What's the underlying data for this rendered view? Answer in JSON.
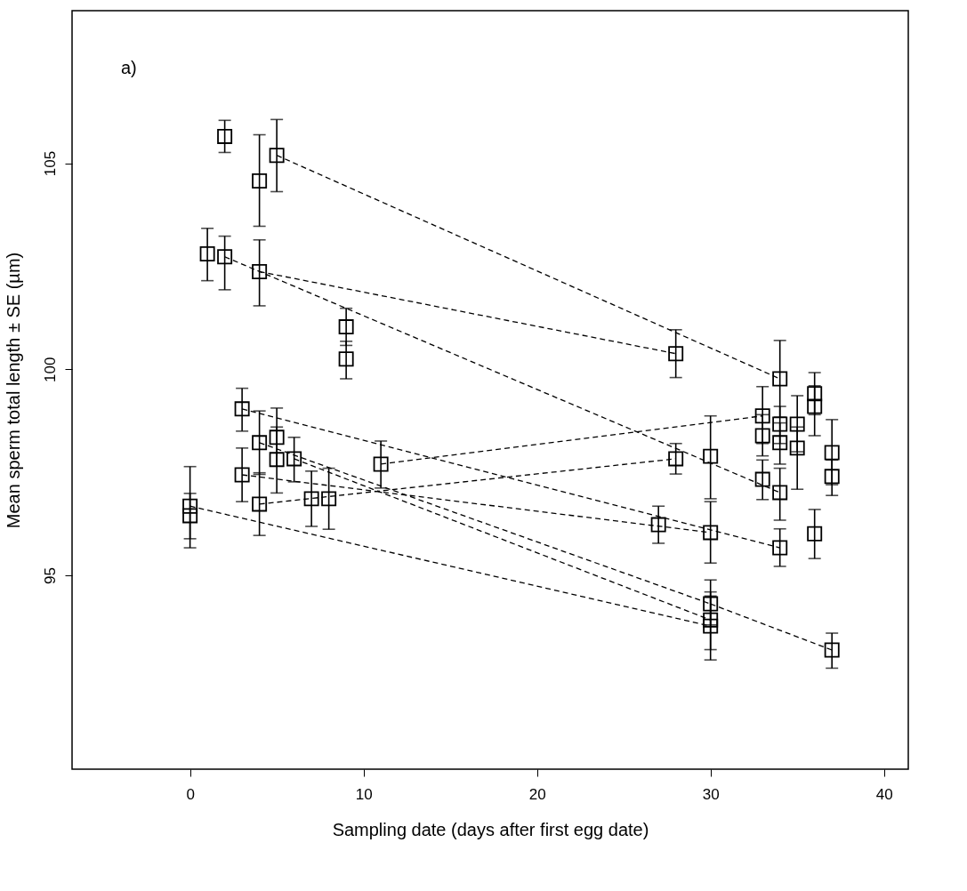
{
  "chart_data": {
    "type": "scatter",
    "xlabel": "Sampling date (days after first egg date)",
    "ylabel": "Mean sperm total length ± SE (µm)",
    "annotations": [
      "a)"
    ],
    "xlim": [
      -6.8,
      41.4
    ],
    "ylim": [
      90.3,
      108.7
    ],
    "xticks": [
      0,
      10,
      20,
      30,
      40
    ],
    "yticks": [
      95,
      100,
      105
    ],
    "series": [
      {
        "marker": "square",
        "color": "#000000",
        "x": [
          2,
          4,
          5,
          1,
          2,
          4,
          9,
          9,
          3,
          4,
          4,
          3,
          5,
          5,
          6,
          7,
          8,
          11,
          0,
          0,
          28,
          34,
          33,
          33,
          33,
          34,
          34,
          34,
          35,
          35,
          36,
          36,
          37,
          37,
          30,
          28,
          27,
          30,
          34,
          36,
          30,
          30,
          30,
          37
        ],
        "values": [
          105.65,
          104.57,
          105.19,
          102.8,
          102.73,
          102.37,
          101.03,
          100.25,
          99.04,
          98.22,
          96.73,
          97.44,
          98.35,
          97.81,
          97.83,
          96.86,
          96.86,
          97.7,
          96.68,
          96.45,
          100.38,
          99.77,
          98.87,
          98.39,
          97.33,
          98.67,
          98.22,
          97.01,
          98.67,
          98.09,
          99.41,
          99.1,
          97.98,
          97.4,
          97.89,
          97.83,
          96.23,
          96.04,
          95.67,
          96.01,
          94.31,
          93.92,
          93.77,
          93.19
        ],
        "errors": [
          [
            105.26,
            106.04
          ],
          [
            103.47,
            105.69
          ],
          [
            104.31,
            106.06
          ],
          [
            102.15,
            103.42
          ],
          [
            101.93,
            103.23
          ],
          [
            101.54,
            103.14
          ],
          [
            100.58,
            101.48
          ],
          [
            99.77,
            100.68
          ],
          [
            98.5,
            99.54
          ],
          [
            97.45,
            98.99
          ],
          [
            95.97,
            97.49
          ],
          [
            96.79,
            98.09
          ],
          [
            97.65,
            99.06
          ],
          [
            97.0,
            98.6
          ],
          [
            97.27,
            98.35
          ],
          [
            96.19,
            97.53
          ],
          [
            96.12,
            97.6
          ],
          [
            97.12,
            98.26
          ],
          [
            95.89,
            97.64
          ],
          [
            95.67,
            96.99
          ],
          [
            99.8,
            100.96
          ],
          [
            98.84,
            100.7
          ],
          [
            98.2,
            99.58
          ],
          [
            97.9,
            98.9
          ],
          [
            96.84,
            97.8
          ],
          [
            98.2,
            99.1
          ],
          [
            97.7,
            98.7
          ],
          [
            96.34,
            97.6
          ],
          [
            98.0,
            99.36
          ],
          [
            97.09,
            98.6
          ],
          [
            98.9,
            99.92
          ],
          [
            98.39,
            99.6
          ],
          [
            97.2,
            98.78
          ],
          [
            96.94,
            97.8
          ],
          [
            96.86,
            98.87
          ],
          [
            97.46,
            98.2
          ],
          [
            95.78,
            96.68
          ],
          [
            95.3,
            96.79
          ],
          [
            95.22,
            96.13
          ],
          [
            95.41,
            96.6
          ],
          [
            93.8,
            94.89
          ],
          [
            93.2,
            94.6
          ],
          [
            92.95,
            94.5
          ],
          [
            92.75,
            93.6
          ]
        ]
      },
      {
        "type": "line",
        "line_style": "dashed",
        "color": "#000000",
        "x": [
          5,
          34
        ],
        "values": [
          105.19,
          99.77
        ]
      },
      {
        "type": "line",
        "line_style": "dashed",
        "color": "#000000",
        "x": [
          4,
          28
        ],
        "values": [
          102.37,
          100.38
        ]
      },
      {
        "type": "line",
        "line_style": "dashed",
        "color": "#000000",
        "x": [
          2,
          34
        ],
        "values": [
          102.73,
          97.01
        ]
      },
      {
        "type": "line",
        "line_style": "dashed",
        "color": "#000000",
        "x": [
          3,
          34
        ],
        "values": [
          99.04,
          95.67
        ]
      },
      {
        "type": "line",
        "line_style": "dashed",
        "color": "#000000",
        "x": [
          3,
          30
        ],
        "values": [
          97.44,
          96.04
        ]
      },
      {
        "type": "line",
        "line_style": "dashed",
        "color": "#000000",
        "x": [
          4,
          28
        ],
        "values": [
          96.73,
          97.83
        ]
      },
      {
        "type": "line",
        "line_style": "dashed",
        "color": "#000000",
        "x": [
          11,
          33
        ],
        "values": [
          97.7,
          98.87
        ]
      },
      {
        "type": "line",
        "line_style": "dashed",
        "color": "#000000",
        "x": [
          4,
          30
        ],
        "values": [
          98.22,
          94.31
        ]
      },
      {
        "type": "line",
        "line_style": "dashed",
        "color": "#000000",
        "x": [
          6,
          30
        ],
        "values": [
          97.83,
          93.92
        ]
      },
      {
        "type": "line",
        "line_style": "dashed",
        "color": "#000000",
        "x": [
          0,
          30
        ],
        "values": [
          96.68,
          93.77
        ]
      },
      {
        "type": "line",
        "line_style": "dashed",
        "color": "#000000",
        "x": [
          30,
          37
        ],
        "values": [
          94.31,
          93.19
        ]
      }
    ]
  }
}
